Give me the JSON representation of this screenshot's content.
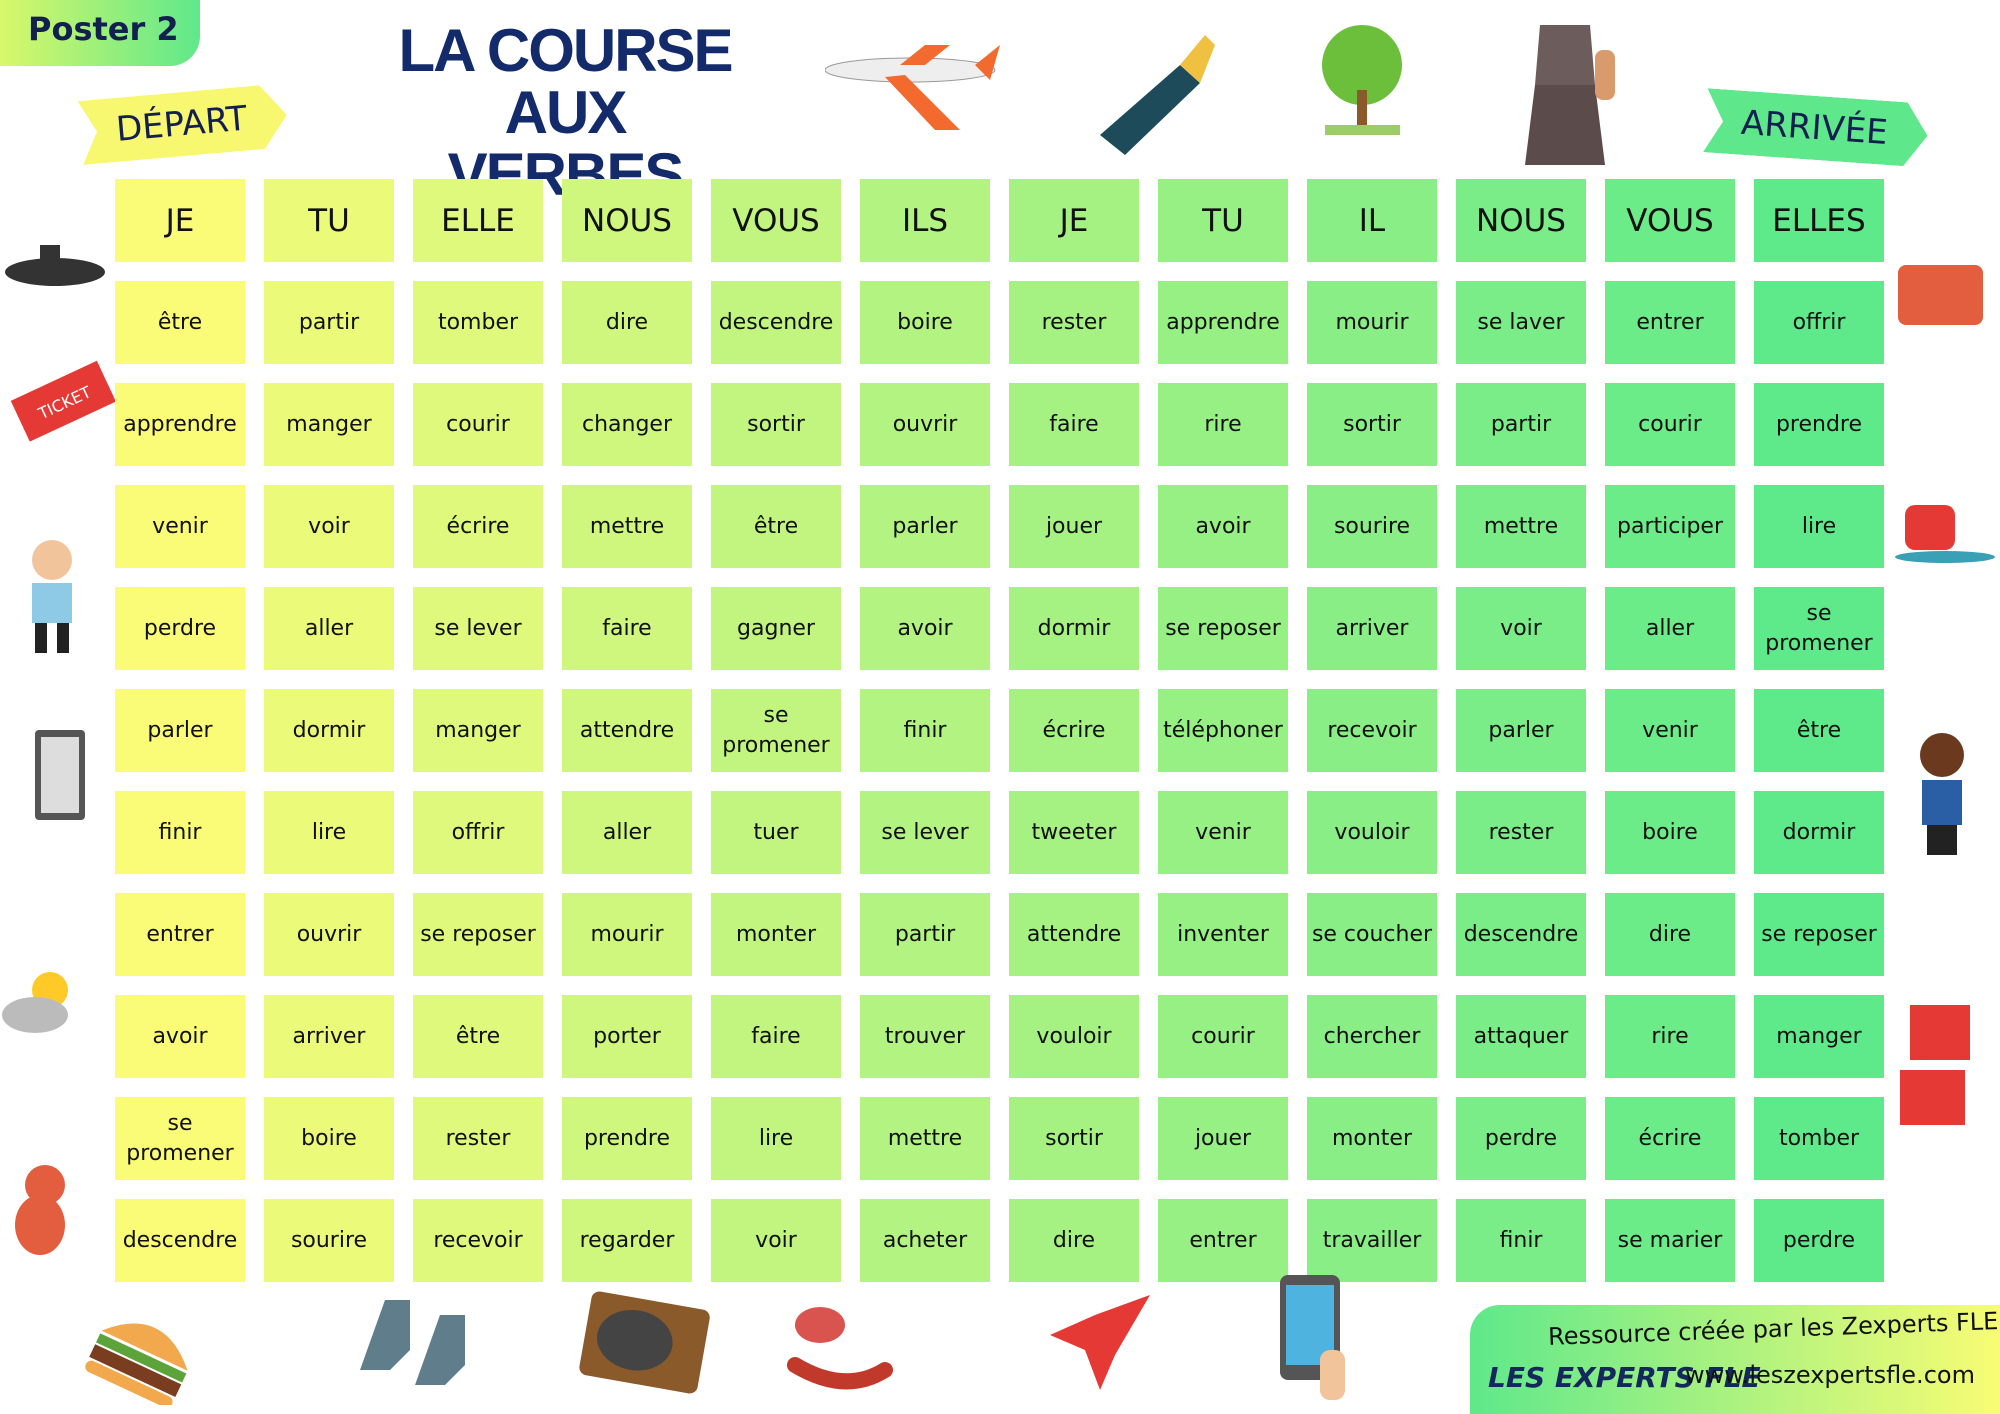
{
  "poster_label": "Poster 2",
  "title_line1": "LA COURSE",
  "title_line2": "AUX VERBES",
  "start_label": "DÉPART",
  "finish_label": "ARRIVÉE",
  "colors": {
    "start": "#fafc78",
    "end": "#5ee98b",
    "title": "#132a6b"
  },
  "pronouns": [
    "JE",
    "TU",
    "ELLE",
    "NOUS",
    "VOUS",
    "ILS",
    "JE",
    "TU",
    "IL",
    "NOUS",
    "VOUS",
    "ELLES"
  ],
  "rows": [
    [
      "être",
      "partir",
      "tomber",
      "dire",
      "descendre",
      "boire",
      "rester",
      "apprendre",
      "mourir",
      "se laver",
      "entrer",
      "offrir"
    ],
    [
      "apprendre",
      "manger",
      "courir",
      "changer",
      "sortir",
      "ouvrir",
      "faire",
      "rire",
      "sortir",
      "partir",
      "courir",
      "prendre"
    ],
    [
      "venir",
      "voir",
      "écrire",
      "mettre",
      "être",
      "parler",
      "jouer",
      "avoir",
      "sourire",
      "mettre",
      "participer",
      "lire"
    ],
    [
      "perdre",
      "aller",
      "se lever",
      "faire",
      "gagner",
      "avoir",
      "dormir",
      "se reposer",
      "arriver",
      "voir",
      "aller",
      "se promener"
    ],
    [
      "parler",
      "dormir",
      "manger",
      "attendre",
      "se promener",
      "finir",
      "écrire",
      "téléphoner",
      "recevoir",
      "parler",
      "venir",
      "être"
    ],
    [
      "finir",
      "lire",
      "offrir",
      "aller",
      "tuer",
      "se lever",
      "tweeter",
      "venir",
      "vouloir",
      "rester",
      "boire",
      "dormir"
    ],
    [
      "entrer",
      "ouvrir",
      "se reposer",
      "mourir",
      "monter",
      "partir",
      "attendre",
      "inventer",
      "se coucher",
      "descendre",
      "dire",
      "se reposer"
    ],
    [
      "avoir",
      "arriver",
      "être",
      "porter",
      "faire",
      "trouver",
      "vouloir",
      "courir",
      "chercher",
      "attaquer",
      "rire",
      "manger"
    ],
    [
      "se promener",
      "boire",
      "rester",
      "prendre",
      "lire",
      "mettre",
      "sortir",
      "jouer",
      "monter",
      "perdre",
      "écrire",
      "tomber"
    ],
    [
      "descendre",
      "sourire",
      "recevoir",
      "regarder",
      "voir",
      "acheter",
      "dire",
      "entrer",
      "travailler",
      "finir",
      "se marier",
      "perdre"
    ]
  ],
  "footer": {
    "credit": "Ressource créée par les Zexperts FLE",
    "logo": "LES EXPERTS FLE",
    "url": "www.leszexpertsfle.com"
  }
}
